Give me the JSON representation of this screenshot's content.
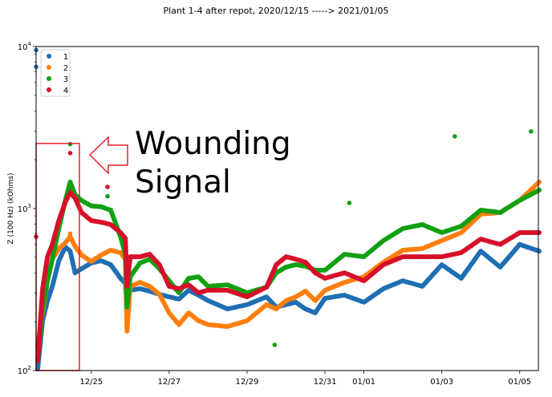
{
  "chart_data": {
    "type": "scatter",
    "title": "Plant 1-4 after repot, 2020/12/15 -----> 2021/01/05",
    "xlabel": "",
    "ylabel": "Z (100 Hz) (kOhms)",
    "yscale": "log",
    "ylim": [
      100,
      10000
    ],
    "xlim": [
      "2020-12-23T14:00",
      "2021-01-05T11:30"
    ],
    "y_tick_labels": [
      {
        "base": "10",
        "exp": "2",
        "value": 100
      },
      {
        "base": "10",
        "exp": "3",
        "value": 1000
      },
      {
        "base": "10",
        "exp": "4",
        "value": 10000
      }
    ],
    "x_ticks": [
      {
        "label": "12/25",
        "date": "2020-12-25T00:00"
      },
      {
        "label": "12/27",
        "date": "2020-12-27T00:00"
      },
      {
        "label": "12/29",
        "date": "2020-12-29T00:00"
      },
      {
        "label": "12/31",
        "date": "2020-12-31T00:00"
      },
      {
        "label": "01/01",
        "date": "2021-01-01T00:00"
      },
      {
        "label": "01/03",
        "date": "2021-01-03T00:00"
      },
      {
        "label": "01/05",
        "date": "2021-01-05T00:00"
      }
    ],
    "grid": false,
    "legend_position": "top-left",
    "x": [
      "2020-12-23T15:00",
      "2020-12-23T18:00",
      "2020-12-23T21:00",
      "2020-12-24T00:00",
      "2020-12-24T04:00",
      "2020-12-24T08:00",
      "2020-12-24T11:00",
      "2020-12-24T14:00",
      "2020-12-24T18:00",
      "2020-12-25T00:00",
      "2020-12-25T06:00",
      "2020-12-25T12:00",
      "2020-12-25T18:00",
      "2020-12-25T21:00",
      "2020-12-25T22:00",
      "2020-12-26T00:00",
      "2020-12-26T06:00",
      "2020-12-26T12:00",
      "2020-12-26T18:00",
      "2020-12-27T00:00",
      "2020-12-27T06:00",
      "2020-12-27T12:00",
      "2020-12-27T18:00",
      "2020-12-28T00:00",
      "2020-12-28T12:00",
      "2020-12-29T00:00",
      "2020-12-29T12:00",
      "2020-12-29T18:00",
      "2020-12-30T00:00",
      "2020-12-30T06:00",
      "2020-12-30T12:00",
      "2020-12-30T18:00",
      "2020-12-31T00:00",
      "2020-12-31T12:00",
      "2021-01-01T00:00",
      "2021-01-01T12:00",
      "2021-01-02T00:00",
      "2021-01-02T12:00",
      "2021-01-03T00:00",
      "2021-01-03T12:00",
      "2021-01-04T00:00",
      "2021-01-04T12:00",
      "2021-01-05T00:00",
      "2021-01-05T12:00"
    ],
    "series": [
      {
        "name": "1",
        "color": "#1f6fb4",
        "values": [
          102,
          203,
          270,
          331,
          476,
          579,
          546,
          401,
          425,
          461,
          476,
          450,
          371,
          346,
          246,
          313,
          320,
          309,
          295,
          285,
          276,
          313,
          292,
          270,
          240,
          255,
          285,
          246,
          255,
          264,
          240,
          227,
          279,
          292,
          264,
          320,
          358,
          331,
          450,
          371,
          546,
          435,
          600,
          546
        ],
        "outliers": [
          {
            "x": "2020-12-23T14:00",
            "y": 9500
          },
          {
            "x": "2020-12-23T14:00",
            "y": 7500
          }
        ]
      },
      {
        "name": "2",
        "color": "#ff7f0e",
        "values": [
          144,
          227,
          358,
          487,
          566,
          613,
          671,
          585,
          516,
          471,
          516,
          553,
          534,
          487,
          175,
          331,
          350,
          331,
          295,
          227,
          192,
          227,
          203,
          192,
          187,
          203,
          255,
          240,
          270,
          285,
          309,
          270,
          313,
          350,
          379,
          466,
          553,
          566,
          634,
          710,
          923,
          945,
          1122,
          1457
        ],
        "outliers": [
          {
            "x": "2020-12-24T11:00",
            "y": 700
          }
        ]
      },
      {
        "name": "3",
        "color": "#12a012",
        "values": [
          115,
          240,
          358,
          487,
          752,
          1122,
          1457,
          1215,
          1122,
          1037,
          1026,
          978,
          671,
          522,
          246,
          379,
          461,
          487,
          425,
          358,
          302,
          371,
          379,
          331,
          338,
          302,
          327,
          401,
          435,
          450,
          440,
          416,
          416,
          522,
          504,
          634,
          752,
          796,
          710,
          778,
          978,
          945,
          1122,
          1299
        ],
        "outliers": [
          {
            "x": "2020-12-24T11:00",
            "y": 2500
          },
          {
            "x": "2020-12-25T10:00",
            "y": 1190
          },
          {
            "x": "2020-12-29T17:00",
            "y": 144
          },
          {
            "x": "2020-12-31T15:00",
            "y": 1083
          },
          {
            "x": "2021-01-03T08:00",
            "y": 2790
          },
          {
            "x": "2021-01-05T07:00",
            "y": 2990
          }
        ]
      },
      {
        "name": "4",
        "color": "#d7102a",
        "values": [
          115,
          320,
          504,
          600,
          842,
          1096,
          1256,
          1160,
          945,
          842,
          824,
          796,
          710,
          656,
          331,
          504,
          504,
          522,
          450,
          331,
          320,
          338,
          302,
          313,
          313,
          285,
          327,
          450,
          504,
          487,
          466,
          401,
          371,
          401,
          358,
          450,
          504,
          504,
          504,
          534,
          648,
          600,
          710,
          710
        ],
        "outliers": [
          {
            "x": "2020-12-23T14:00",
            "y": 670
          },
          {
            "x": "2020-12-24T11:00",
            "y": 2200
          },
          {
            "x": "2020-12-25T10:00",
            "y": 1360
          }
        ]
      }
    ],
    "annotations": {
      "text_line1": "Wounding",
      "text_line2": "Signal",
      "color": "#e8202a",
      "box": {
        "x_start": "2020-12-23T14:00",
        "x_end": "2020-12-24T16:40",
        "y_low": 100,
        "y_high": 2520
      },
      "arrow": "left-pointing-outline-arrow"
    }
  }
}
